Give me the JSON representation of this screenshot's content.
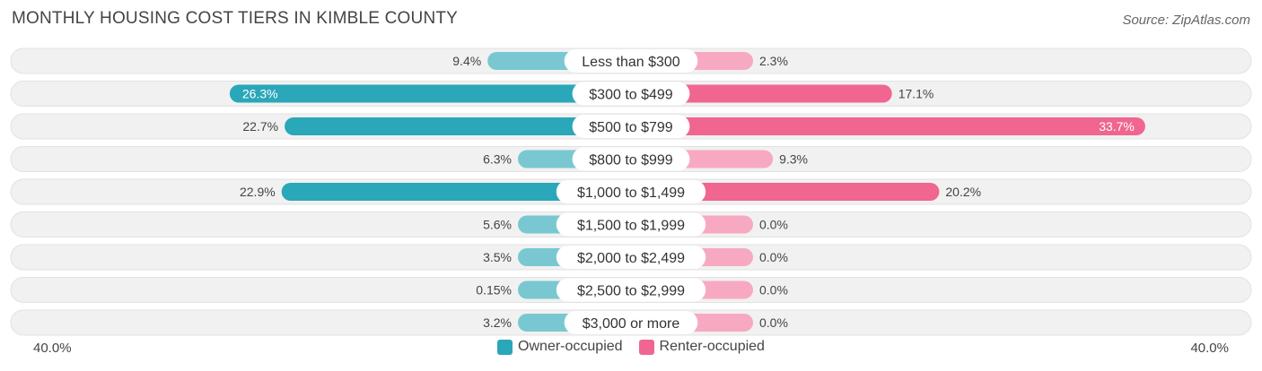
{
  "header": {
    "title": "MONTHLY HOUSING COST TIERS IN KIMBLE COUNTY",
    "source": "Source: ZipAtlas.com"
  },
  "colors": {
    "owner": "#2aa7b8",
    "owner_light": "#79c8d1",
    "renter": "#f06690",
    "renter_light": "#f7a9c2",
    "row_bg": "#f1f1f1"
  },
  "chart_data": {
    "type": "bar",
    "orientation": "horizontal-diverging",
    "categories": [
      "Less than $300",
      "$300 to $499",
      "$500 to $799",
      "$800 to $999",
      "$1,000 to $1,499",
      "$1,500 to $1,999",
      "$2,000 to $2,499",
      "$2,500 to $2,999",
      "$3,000 or more"
    ],
    "series": [
      {
        "name": "Owner-occupied",
        "values": [
          9.4,
          26.3,
          22.7,
          6.3,
          22.9,
          5.6,
          3.5,
          0.15,
          3.2
        ],
        "labels": [
          "9.4%",
          "26.3%",
          "22.7%",
          "6.3%",
          "22.9%",
          "5.6%",
          "3.5%",
          "0.15%",
          "3.2%"
        ]
      },
      {
        "name": "Renter-occupied",
        "values": [
          2.3,
          17.1,
          33.7,
          9.3,
          20.2,
          0.0,
          0.0,
          0.0,
          0.0
        ],
        "labels": [
          "2.3%",
          "17.1%",
          "33.7%",
          "9.3%",
          "20.2%",
          "0.0%",
          "0.0%",
          "0.0%",
          "0.0%"
        ]
      }
    ],
    "xlim": [
      -40,
      40
    ],
    "axis_labels": {
      "left": "40.0%",
      "right": "40.0%"
    },
    "legend_position": "bottom-center"
  }
}
